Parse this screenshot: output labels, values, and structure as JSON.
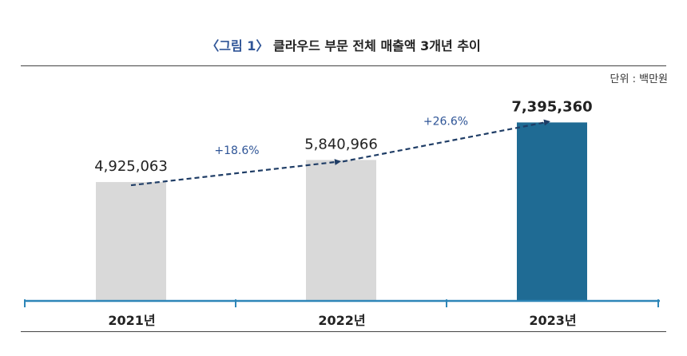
{
  "figure": {
    "label": "〈그림 1〉",
    "title": "클라우드 부문 전체 매출액 3개년 추이",
    "unit": "단위 : 백만원"
  },
  "colors": {
    "bar_default": "#d9d9d9",
    "bar_highlight": "#1f6b94",
    "axis": "#2e86b8",
    "trend": "#1f3d66",
    "growth_label": "#2f5597"
  },
  "chart_data": {
    "type": "bar",
    "title": "클라우드 부문 전체 매출액 3개년 추이",
    "categories": [
      "2021년",
      "2022년",
      "2023년"
    ],
    "values": [
      4925063,
      5840966,
      7395360
    ],
    "value_labels": [
      "4,925,063",
      "5,840,966",
      "7,395,360"
    ],
    "highlight_index": 2,
    "growth_labels": [
      "+18.6%",
      "+26.6%"
    ],
    "ylim": [
      0,
      8500000
    ],
    "grid": false,
    "legend": "none"
  }
}
